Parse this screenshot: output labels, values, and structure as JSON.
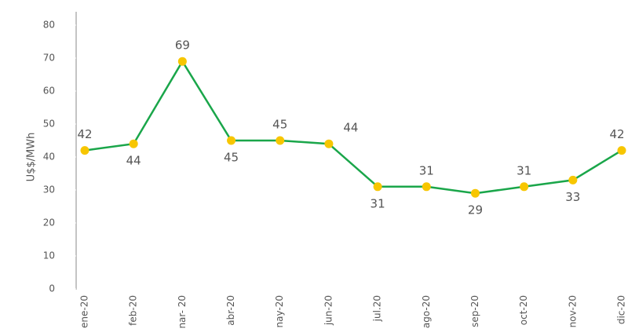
{
  "chart_data": {
    "type": "line",
    "y_label": "U$$/MWh",
    "categories": [
      "ene-20",
      "feb-20",
      "nar- 20",
      "abr-20",
      "nay-20",
      "jun-20",
      "jul.20",
      "ago-20",
      "sep-20",
      "oct-20",
      "nov-20",
      "dic-20"
    ],
    "series": [
      {
        "name": "U$$/MWh",
        "color": "#1aa64a",
        "marker_color": "#f7c600",
        "values": [
          42,
          44,
          69,
          45,
          45,
          44,
          31,
          31,
          29,
          31,
          33,
          42
        ]
      }
    ],
    "ylim": [
      0,
      80
    ],
    "yticks": [
      0,
      10,
      20,
      30,
      40,
      50,
      60,
      70,
      80
    ],
    "grid": false
  }
}
